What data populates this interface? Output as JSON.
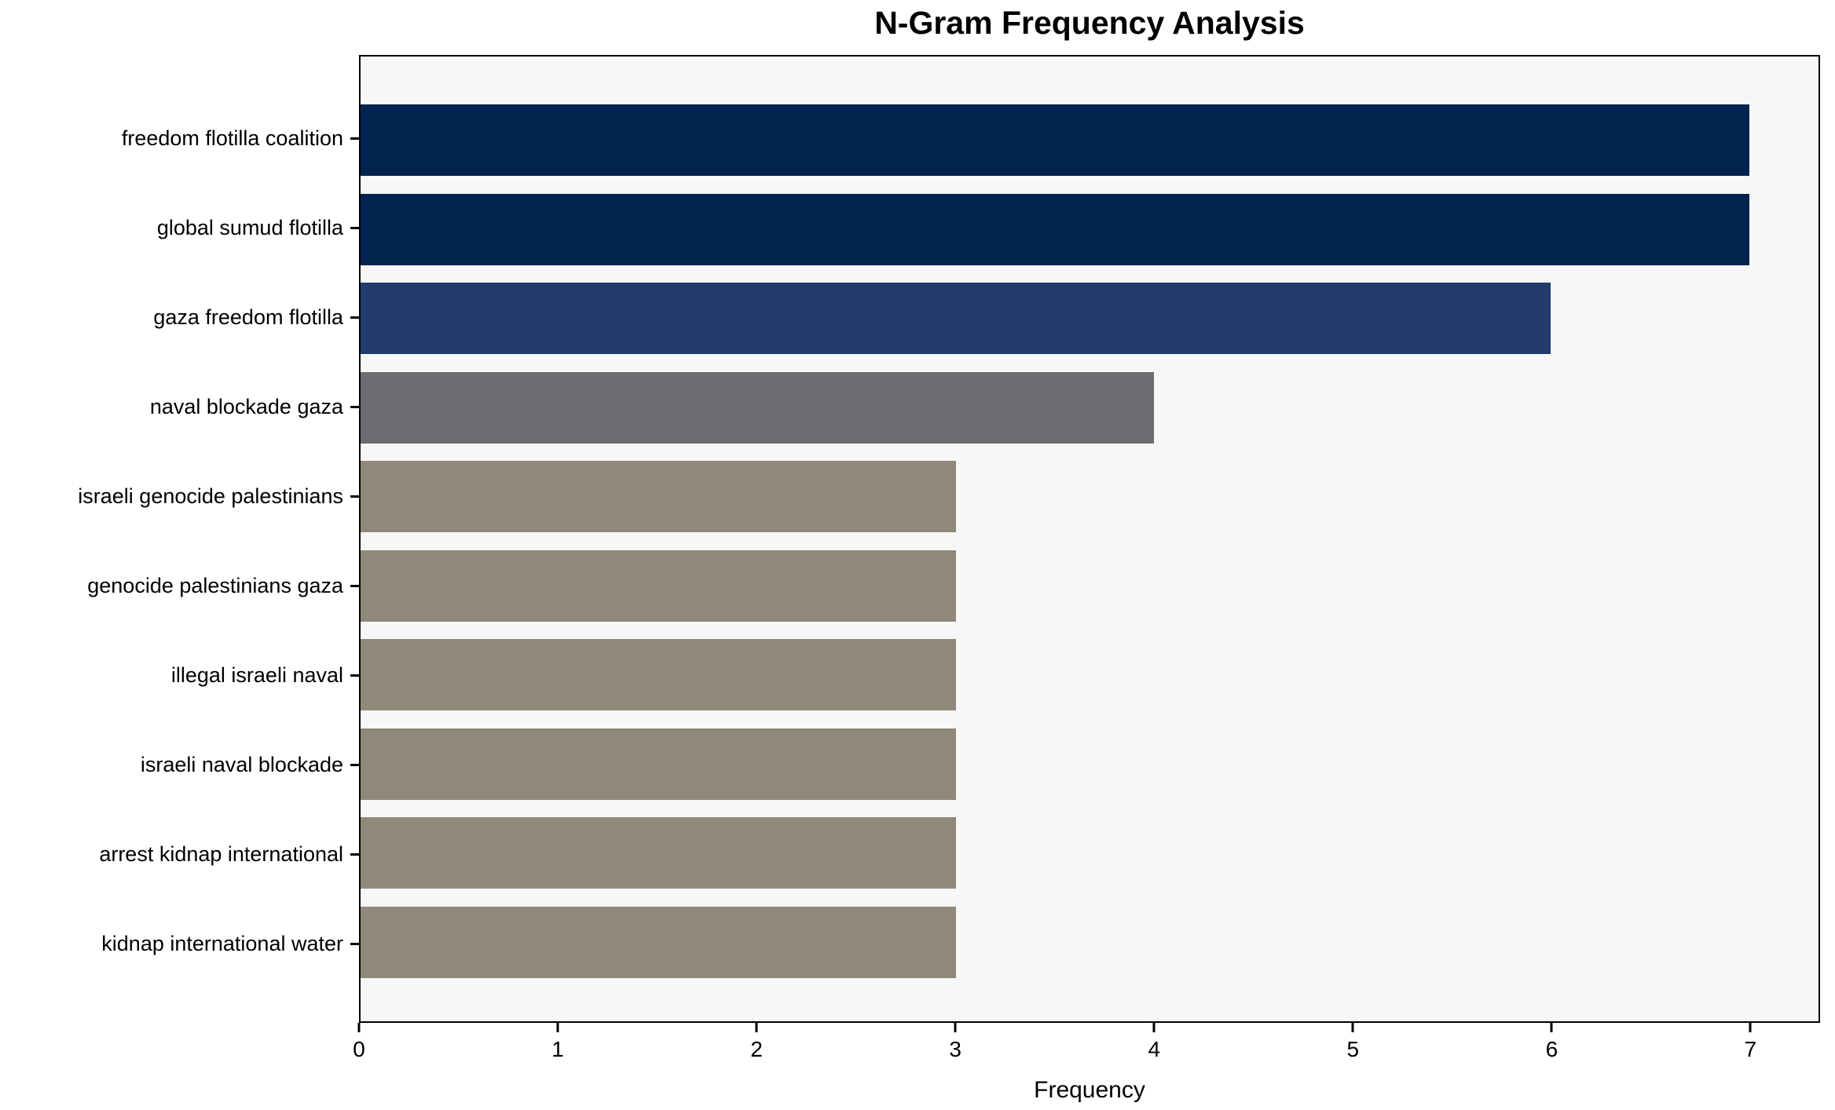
{
  "chart_data": {
    "type": "bar",
    "orientation": "horizontal",
    "title": "N-Gram Frequency Analysis",
    "xlabel": "Frequency",
    "ylabel": "",
    "xlim": [
      0,
      7.35
    ],
    "xticks": [
      0,
      1,
      2,
      3,
      4,
      5,
      6,
      7
    ],
    "grid": false,
    "legend": "none",
    "plot_background": "#f7f7f7",
    "figure_background": "#ffffff",
    "bar_height_ratio": 0.8,
    "categories": [
      "freedom flotilla coalition",
      "global sumud flotilla",
      "gaza freedom flotilla",
      "naval blockade gaza",
      "israeli genocide palestinians",
      "genocide palestinians gaza",
      "illegal israeli naval",
      "israeli naval blockade",
      "arrest kidnap international",
      "kidnap international water"
    ],
    "values": [
      7,
      7,
      6,
      4,
      3,
      3,
      3,
      3,
      3,
      3
    ],
    "bar_colors": [
      "#02234d",
      "#02234d",
      "#223c6d",
      "#6b6b70",
      "#8e8979",
      "#8e8979",
      "#8e8979",
      "#8e8979",
      "#8e8979",
      "#8e8979"
    ]
  }
}
